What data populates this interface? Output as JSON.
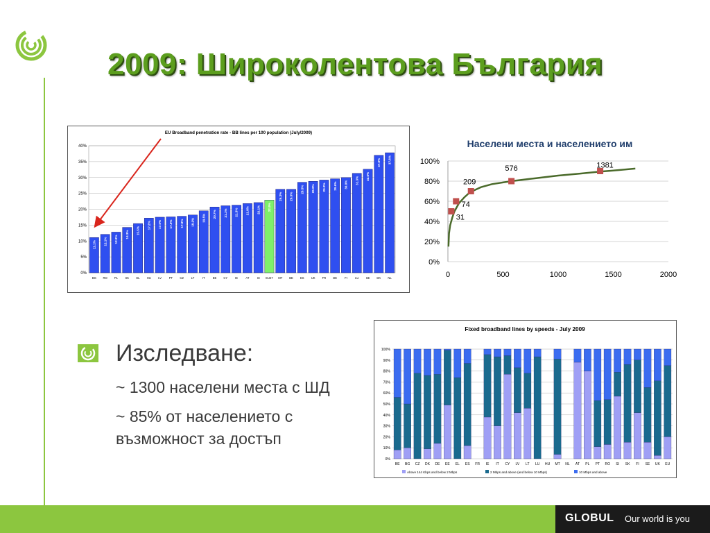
{
  "slide": {
    "title": "2009: Широколентова България"
  },
  "bullets": {
    "main": "Изследване:",
    "sub": [
      "~ 1300 населени места с ШД",
      "~ 85% от населението с възможност за достъп"
    ]
  },
  "footer": {
    "brand": "GLOBUL",
    "slogan": "Our world is you"
  },
  "colors": {
    "accent_green": "#8cc63f",
    "bar_blue": "#2f4ff0",
    "bar_highlight": "#7ef06a",
    "curve_green": "#4a6a2a",
    "marker_red": "#c0504d"
  },
  "chart_data": [
    {
      "type": "bar",
      "title": "EU Broadband penetration rate - BB lines per 100 population (July/2009)",
      "categories": [
        "BG",
        "RO",
        "PL",
        "SK",
        "EL",
        "HU",
        "LV",
        "PT",
        "CZ",
        "LT",
        "IT",
        "EE",
        "CY",
        "IE",
        "AT",
        "SI",
        "EU27",
        "MT",
        "BE",
        "ES",
        "UK",
        "FR",
        "DE",
        "FI",
        "LU",
        "SE",
        "DK",
        "NL"
      ],
      "values": [
        11.1,
        12.1,
        12.8,
        14.3,
        15.5,
        17.2,
        17.5,
        17.6,
        17.8,
        18.2,
        19.5,
        20.7,
        21.1,
        21.3,
        21.8,
        22.1,
        22.9,
        26.3,
        26.3,
        28.5,
        28.8,
        29.2,
        29.6,
        30.0,
        31.3,
        32.6,
        37.0,
        37.8
      ],
      "value_labels": [
        "11.1%",
        "12.1%",
        "12.8%",
        "14.3%",
        "15.5%",
        "17.2%",
        "17.5%",
        "17.6%",
        "17.8%",
        "18.2%",
        "19.5%",
        "20.7%",
        "21.1%",
        "21.3%",
        "21.8%",
        "22.1%",
        "22.9%",
        "26.3%",
        "26.3%",
        "28.5%",
        "28.8%",
        "29.2%",
        "29.6%",
        "30.0%",
        "31.3%",
        "32.6%",
        "37.0%",
        "37.8%"
      ],
      "highlight": "EU27",
      "yticks": [
        "0%",
        "5%",
        "10%",
        "15%",
        "20%",
        "25%",
        "30%",
        "35%",
        "40%"
      ],
      "ylim": [
        0,
        40
      ],
      "grid": true
    },
    {
      "type": "line",
      "title": "Населени места и населението им",
      "curve_x": [
        5,
        10,
        20,
        40,
        60,
        100,
        150,
        200,
        300,
        400,
        576,
        800,
        1000,
        1200,
        1381,
        1500,
        1700
      ],
      "curve_y": [
        15,
        28,
        36,
        44,
        50,
        58,
        64,
        69,
        74,
        77,
        80,
        83,
        85.5,
        87.5,
        89.5,
        90.5,
        92.5
      ],
      "points": [
        {
          "x": 31,
          "y": 50,
          "label": "31"
        },
        {
          "x": 74,
          "y": 60,
          "label": "74"
        },
        {
          "x": 209,
          "y": 70,
          "label": "209"
        },
        {
          "x": 576,
          "y": 80,
          "label": "576"
        },
        {
          "x": 1381,
          "y": 90,
          "label": "1381"
        }
      ],
      "xticks": [
        "0",
        "500",
        "1000",
        "1500",
        "2000"
      ],
      "yticks": [
        "0%",
        "20%",
        "40%",
        "60%",
        "80%",
        "100%"
      ],
      "xlim": [
        0,
        2000
      ],
      "ylim": [
        0,
        100
      ],
      "grid": true
    },
    {
      "type": "bar",
      "stacked": true,
      "title": "Fixed broadband lines by speeds - July 2009",
      "categories": [
        "BE",
        "BG",
        "CZ",
        "DK",
        "DE",
        "EE",
        "EL",
        "ES",
        "FR",
        "IE",
        "IT",
        "CY",
        "LV",
        "LT",
        "LU",
        "HU",
        "MT",
        "NL",
        "AT",
        "PL",
        "PT",
        "RO",
        "SI",
        "SK",
        "FI",
        "SE",
        "UK",
        "EU"
      ],
      "series": [
        {
          "name": "Above 144 Kbps and below 2 Mbps",
          "values": [
            8,
            10,
            0,
            9,
            14,
            49,
            0,
            12,
            null,
            38,
            30,
            77,
            42,
            46,
            0,
            null,
            4,
            null,
            88,
            80,
            11,
            13,
            57,
            15,
            42,
            15,
            3,
            20
          ]
        },
        {
          "name": "2 Mbps and above (and below 10 Mbps)",
          "values": [
            48,
            40,
            78,
            67,
            63,
            50,
            74,
            75,
            null,
            57,
            63,
            17,
            41,
            32,
            93,
            null,
            87,
            null,
            0,
            0,
            42,
            41,
            22,
            71,
            48,
            50,
            68,
            65
          ]
        },
        {
          "name": "10 Mbps and above",
          "values": [
            44,
            50,
            22,
            24,
            23,
            1,
            26,
            13,
            null,
            5,
            7,
            6,
            17,
            22,
            7,
            null,
            9,
            null,
            12,
            20,
            47,
            46,
            21,
            14,
            10,
            35,
            29,
            15
          ]
        }
      ],
      "yticks": [
        "0%",
        "10%",
        "20%",
        "30%",
        "40%",
        "50%",
        "60%",
        "70%",
        "80%",
        "90%",
        "100%"
      ],
      "ylim": [
        0,
        100
      ],
      "grid": true
    }
  ]
}
